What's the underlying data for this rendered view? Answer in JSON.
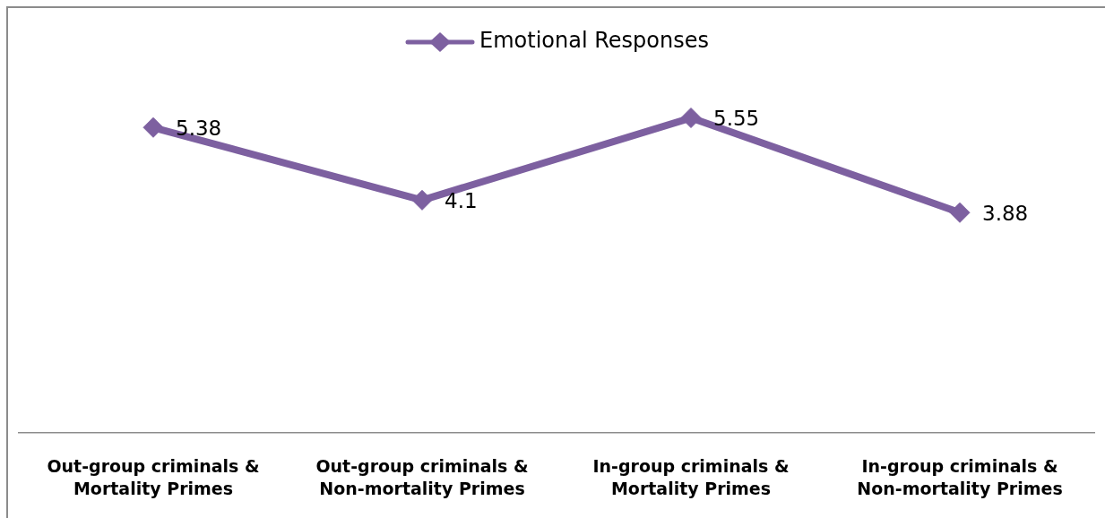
{
  "chart_data": {
    "type": "line",
    "categories": [
      "Out-group criminals & Mortality Primes",
      "Out-group criminals & Non-mortality Primes",
      "In-group criminals & Mortality Primes",
      "In-group criminals & Non-mortality Primes"
    ],
    "series": [
      {
        "name": "Emotional Responses",
        "color": "#7d60a0",
        "values": [
          5.38,
          4.1,
          5.55,
          3.88
        ]
      }
    ],
    "data_labels": true,
    "legend": "top",
    "marker": "diamond",
    "line_style": "solid",
    "tick_labels": "x"
  }
}
